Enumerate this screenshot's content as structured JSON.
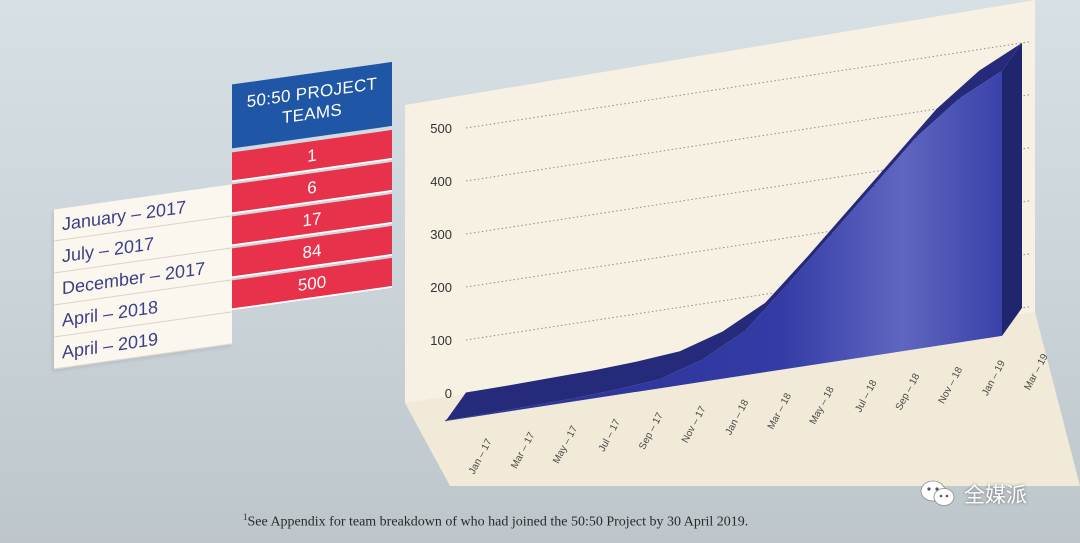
{
  "table": {
    "header": "50:50 PROJECT TEAMS",
    "rows": [
      {
        "label": "January – 2017",
        "value": "1"
      },
      {
        "label": "July – 2017",
        "value": "6"
      },
      {
        "label": "December – 2017",
        "value": "17"
      },
      {
        "label": "April – 2018",
        "value": "84"
      },
      {
        "label": "April – 2019",
        "value": "500"
      }
    ]
  },
  "chart_data": {
    "type": "area",
    "x": [
      "Jan – 17",
      "Mar – 17",
      "May – 17",
      "Jul – 17",
      "Sep – 17",
      "Nov – 17",
      "Jan – 18",
      "Mar – 18",
      "May – 18",
      "Jul – 18",
      "Sep – 18",
      "Nov – 18",
      "Jan – 19",
      "Mar – 19"
    ],
    "values": [
      1,
      2,
      4,
      6,
      10,
      17,
      42,
      84,
      160,
      240,
      320,
      400,
      460,
      500
    ],
    "ylim": [
      0,
      500
    ],
    "yticks": [
      0,
      100,
      200,
      300,
      400,
      500
    ],
    "grid": true,
    "colors": {
      "front": "#2e3596",
      "top": "#252b7a",
      "panel": "#f7f1e3"
    }
  },
  "footnote": {
    "marker": "1",
    "text": "See Appendix for team breakdown of who had joined the 50:50 Project by 30 April 2019."
  },
  "watermark": {
    "icon": "wechat-icon",
    "text": "全媒派"
  }
}
